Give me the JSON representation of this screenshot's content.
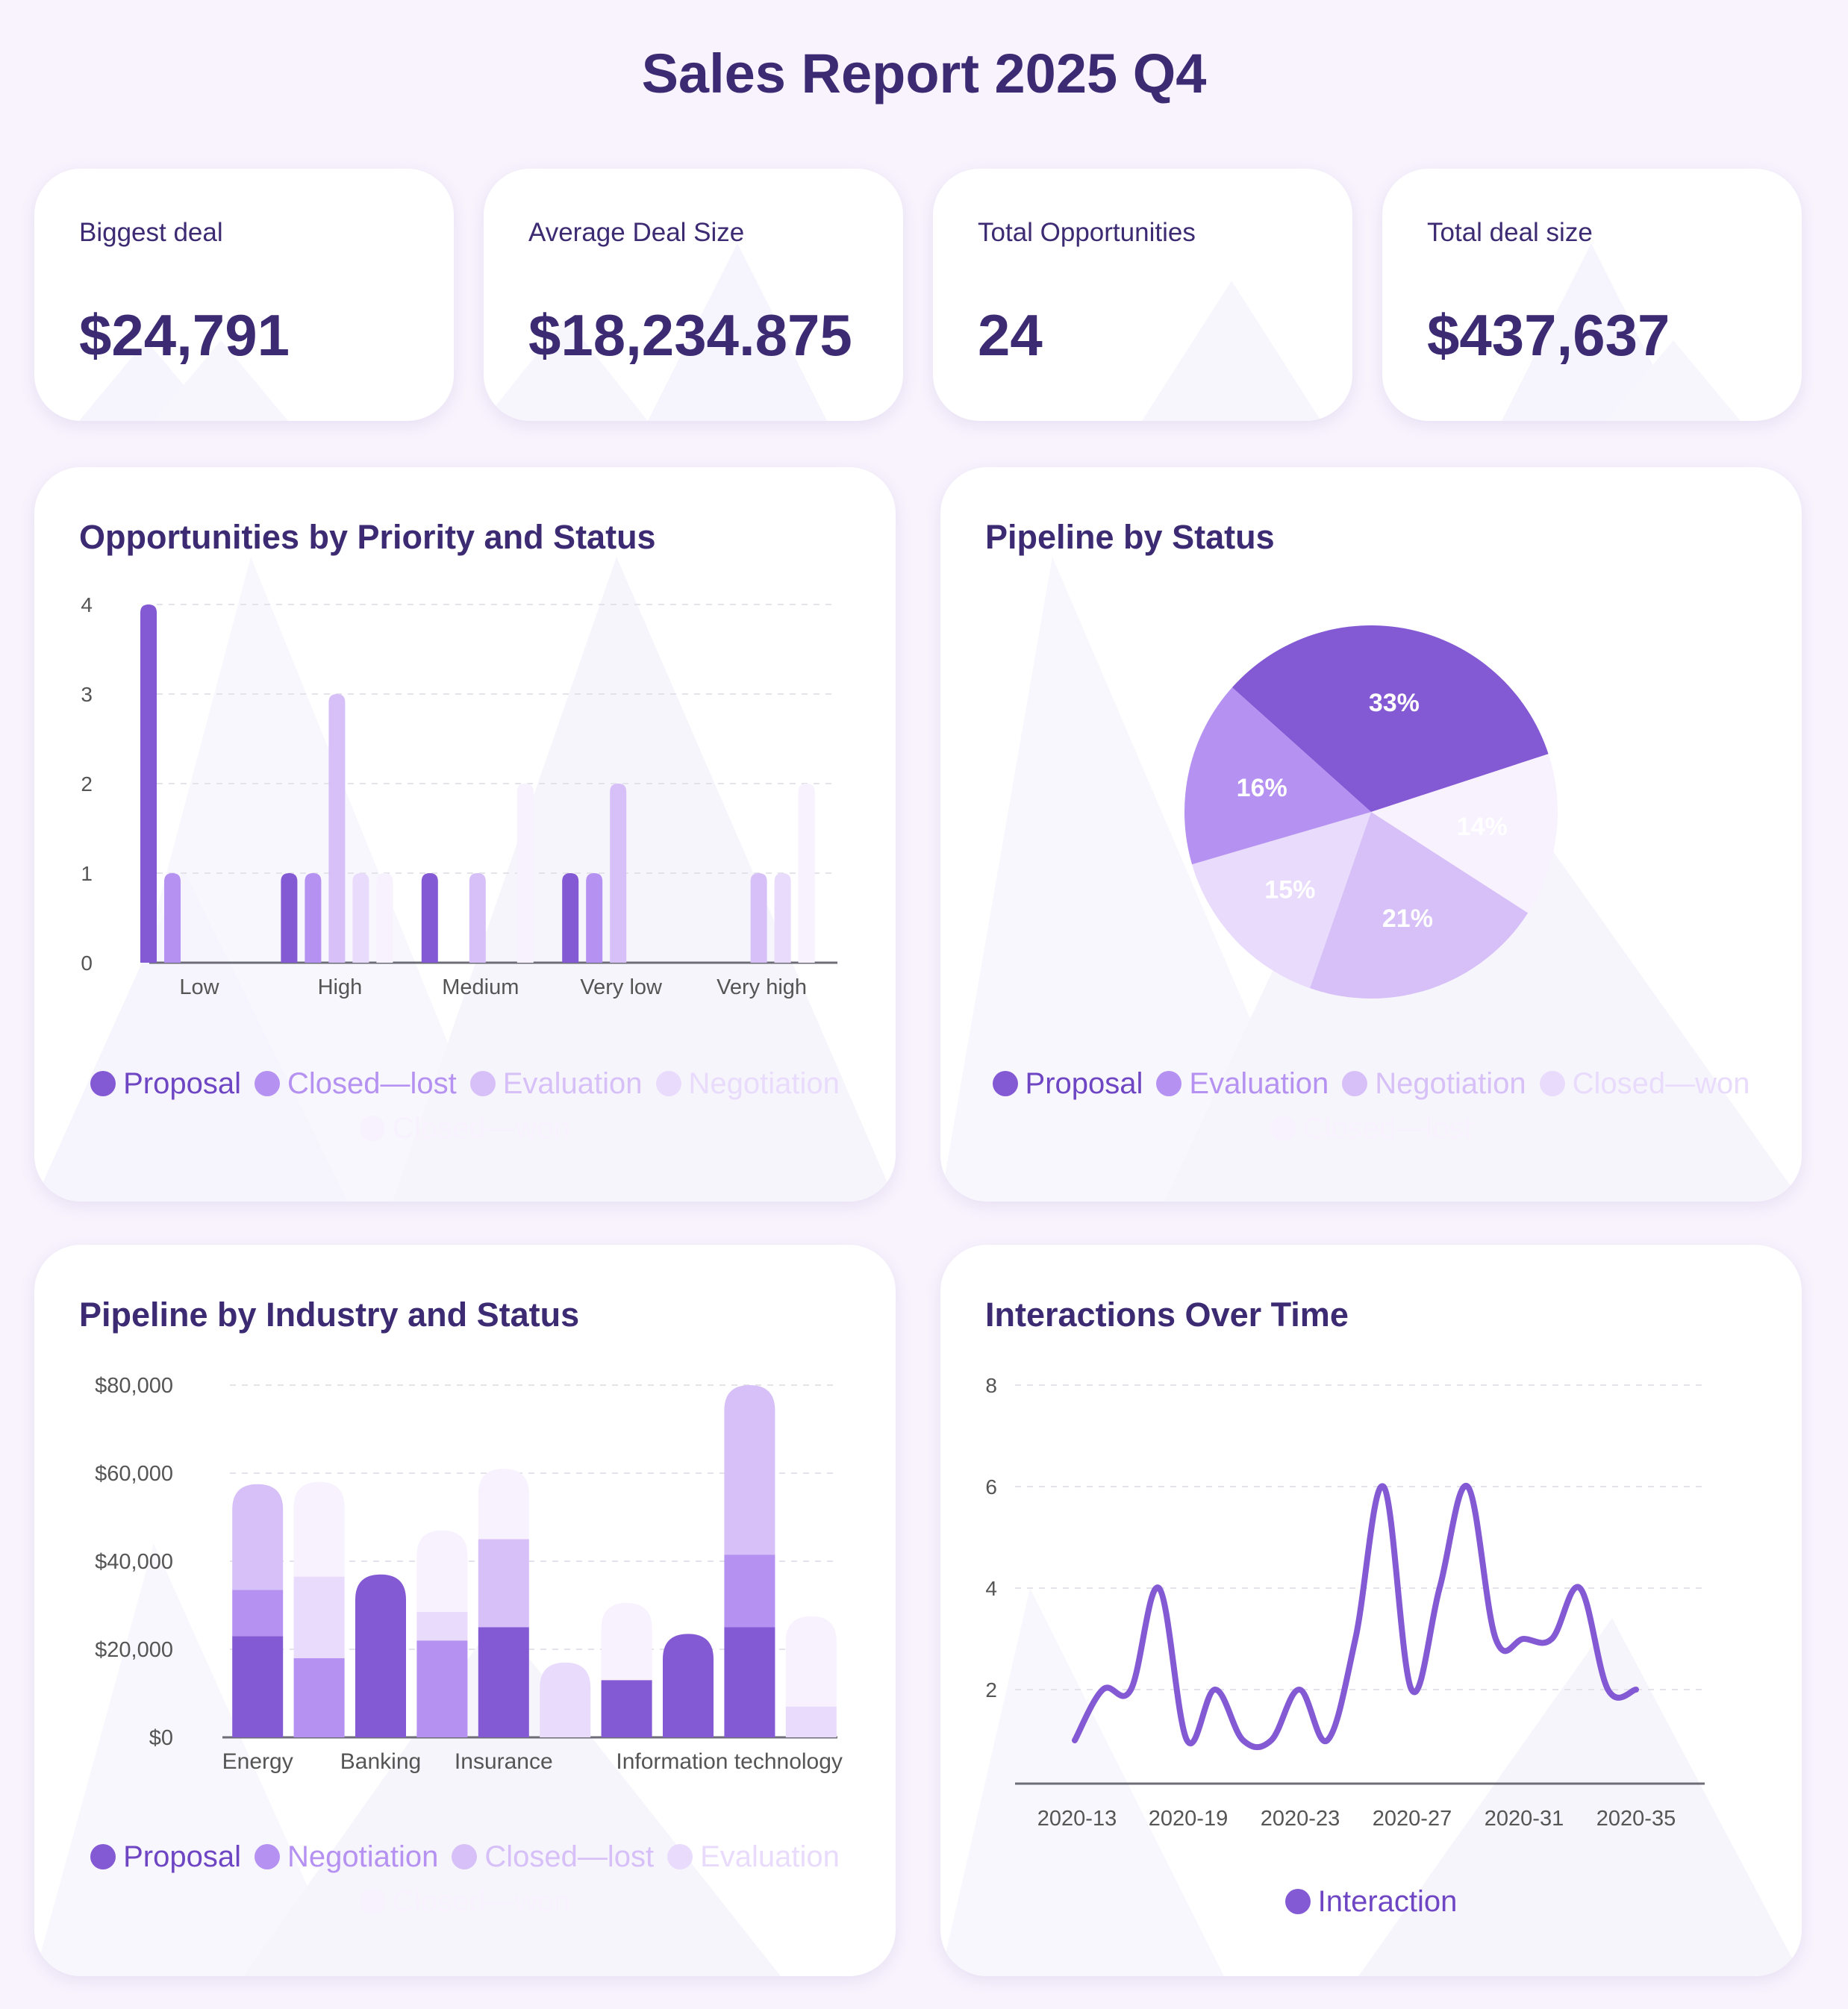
{
  "report_title": "Sales Report 2025 Q4",
  "colors": {
    "shade1": "#8459d4",
    "shade2": "#b591f1",
    "shade3": "#d6c0f7",
    "shade4": "#e9dbfb",
    "shade5": "#f8f1fe"
  },
  "kpis": [
    {
      "label": "Biggest deal",
      "value": "$24,791"
    },
    {
      "label": "Average Deal Size",
      "value": "$18,234.875"
    },
    {
      "label": "Total Opportunities",
      "value": "24"
    },
    {
      "label": "Total deal size",
      "value": "$437,637"
    }
  ],
  "chart_data": [
    {
      "type": "bar",
      "title": "Opportunities by Priority and Status",
      "categories": [
        "Low",
        "High",
        "Medium",
        "Very low",
        "Very high"
      ],
      "ylim": [
        0,
        4
      ],
      "yticks": [
        "0",
        "1",
        "2",
        "3",
        "4"
      ],
      "series": [
        {
          "name": "Proposal",
          "values": [
            4,
            1,
            1,
            1,
            0
          ]
        },
        {
          "name": "Closed—lost",
          "values": [
            1,
            1,
            0,
            1,
            0
          ]
        },
        {
          "name": "Evaluation",
          "values": [
            0,
            3,
            1,
            2,
            1
          ]
        },
        {
          "name": "Negotiation",
          "values": [
            0,
            1,
            0,
            0,
            1
          ]
        },
        {
          "name": "Closed—won",
          "values": [
            0,
            1,
            2,
            0,
            2
          ]
        }
      ]
    },
    {
      "type": "pie",
      "title": "Pipeline by Status",
      "labels": [
        "Proposal",
        "Closed—lost",
        "Negotiation",
        "Closed—won",
        "Evaluation"
      ],
      "values": [
        33,
        14,
        21,
        15,
        16
      ],
      "value_labels": [
        "33%",
        "14%",
        "21%",
        "15%",
        "16%"
      ],
      "legend": [
        "Proposal",
        "Evaluation",
        "Negotiation",
        "Closed—won",
        "Closed—lost"
      ]
    },
    {
      "type": "bar",
      "title": "Pipeline by Industry and Status",
      "stacked": true,
      "categories": [
        "Energy",
        "",
        "Banking",
        "",
        "Insurance",
        "",
        "",
        "",
        "Information technology",
        ""
      ],
      "ylim": [
        0,
        80000
      ],
      "yticks": [
        "$0",
        "$20,000",
        "$40,000",
        "$60,000",
        "$80,000"
      ],
      "series": [
        {
          "name": "Proposal",
          "values": [
            23000,
            0,
            37000,
            0,
            25000,
            0,
            13000,
            23500,
            25000,
            0
          ]
        },
        {
          "name": "Negotiation",
          "values": [
            10500,
            18000,
            0,
            22000,
            0,
            0,
            0,
            0,
            16500,
            0
          ]
        },
        {
          "name": "Closed—lost",
          "values": [
            24000,
            0,
            0,
            0,
            20000,
            0,
            0,
            0,
            38500,
            0
          ]
        },
        {
          "name": "Evaluation",
          "values": [
            0,
            18500,
            0,
            6500,
            0,
            17000,
            0,
            0,
            0,
            7000
          ]
        },
        {
          "name": "Closed—won",
          "values": [
            0,
            21500,
            0,
            18500,
            16000,
            0,
            17500,
            0,
            0,
            20500
          ]
        }
      ]
    },
    {
      "type": "line",
      "title": "Interactions Over Time",
      "ylim": [
        0,
        8
      ],
      "yticks": [
        "2",
        "4",
        "6",
        "8"
      ],
      "xticks": [
        "2020-13",
        "2020-19",
        "2020-23",
        "2020-27",
        "2020-31",
        "2020-35"
      ],
      "series": [
        {
          "name": "Interaction",
          "values": [
            1,
            2,
            2,
            4,
            1,
            2,
            1,
            1,
            2,
            1,
            3,
            6,
            2,
            4,
            6,
            3,
            3,
            3,
            4,
            2,
            2
          ]
        }
      ]
    }
  ]
}
